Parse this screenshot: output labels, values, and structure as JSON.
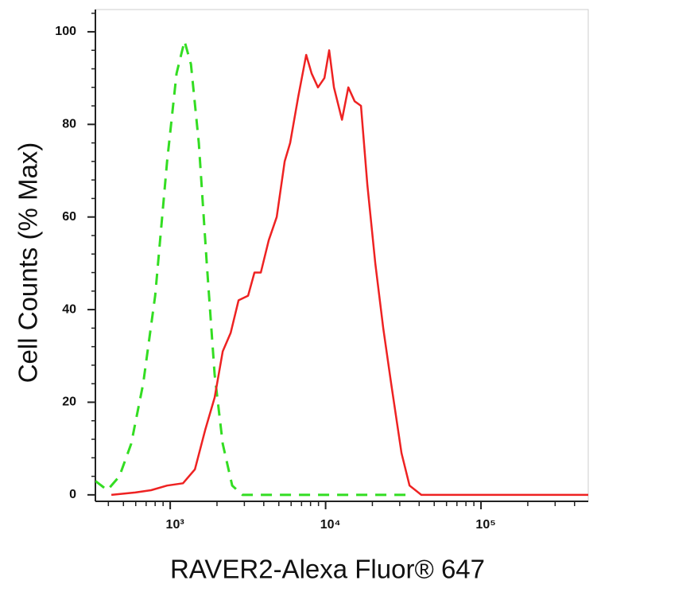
{
  "chart_data": {
    "type": "line",
    "x_label": "RAVER2-Alexa Fluor® 647",
    "y_label": "Cell Counts (% Max)",
    "xscale": "log",
    "xlim": [
      330,
      490000
    ],
    "ylim": [
      -1.4,
      104.8
    ],
    "xticks": [
      {
        "value": 1000,
        "label": "10³"
      },
      {
        "value": 10000,
        "label": "10⁴"
      },
      {
        "value": 100000,
        "label": "10⁵"
      }
    ],
    "yticks": [
      0,
      20,
      40,
      60,
      80,
      100
    ],
    "grid": false,
    "series": [
      {
        "color": "#33dd22",
        "dashed": true,
        "x": [
          330,
          394,
          471,
          561,
          670,
          800,
          955,
          1099,
          1236,
          1359,
          1528,
          1719,
          1932,
          2178,
          2506,
          2918,
          3483,
          8933,
          36730
        ],
        "values": [
          3,
          1,
          4,
          11,
          24,
          43,
          72,
          91,
          98,
          93,
          76,
          50,
          26,
          11,
          2,
          0,
          0,
          0,
          0
        ]
      },
      {
        "color": "#ee2222",
        "dashed": false,
        "x": [
          418,
          596,
          754,
          955,
          1208,
          1442,
          1679,
          1932,
          2178,
          2449,
          2754,
          3172,
          3483,
          3831,
          4307,
          4845,
          5454,
          5916,
          6668,
          7498,
          8128,
          8933,
          9819,
          10540,
          11320,
          12740,
          14000,
          15380,
          16900,
          18570,
          20890,
          23490,
          26420,
          30790,
          34670,
          41300,
          490000
        ],
        "values": [
          0,
          0.5,
          1,
          2,
          2.5,
          5.5,
          14,
          21,
          31,
          35,
          42,
          43,
          48,
          48,
          55,
          60,
          72,
          76,
          86,
          95,
          91,
          88,
          90,
          96,
          88,
          81,
          88,
          85,
          84,
          67,
          50,
          36,
          24,
          9,
          2,
          0,
          0
        ]
      }
    ]
  }
}
